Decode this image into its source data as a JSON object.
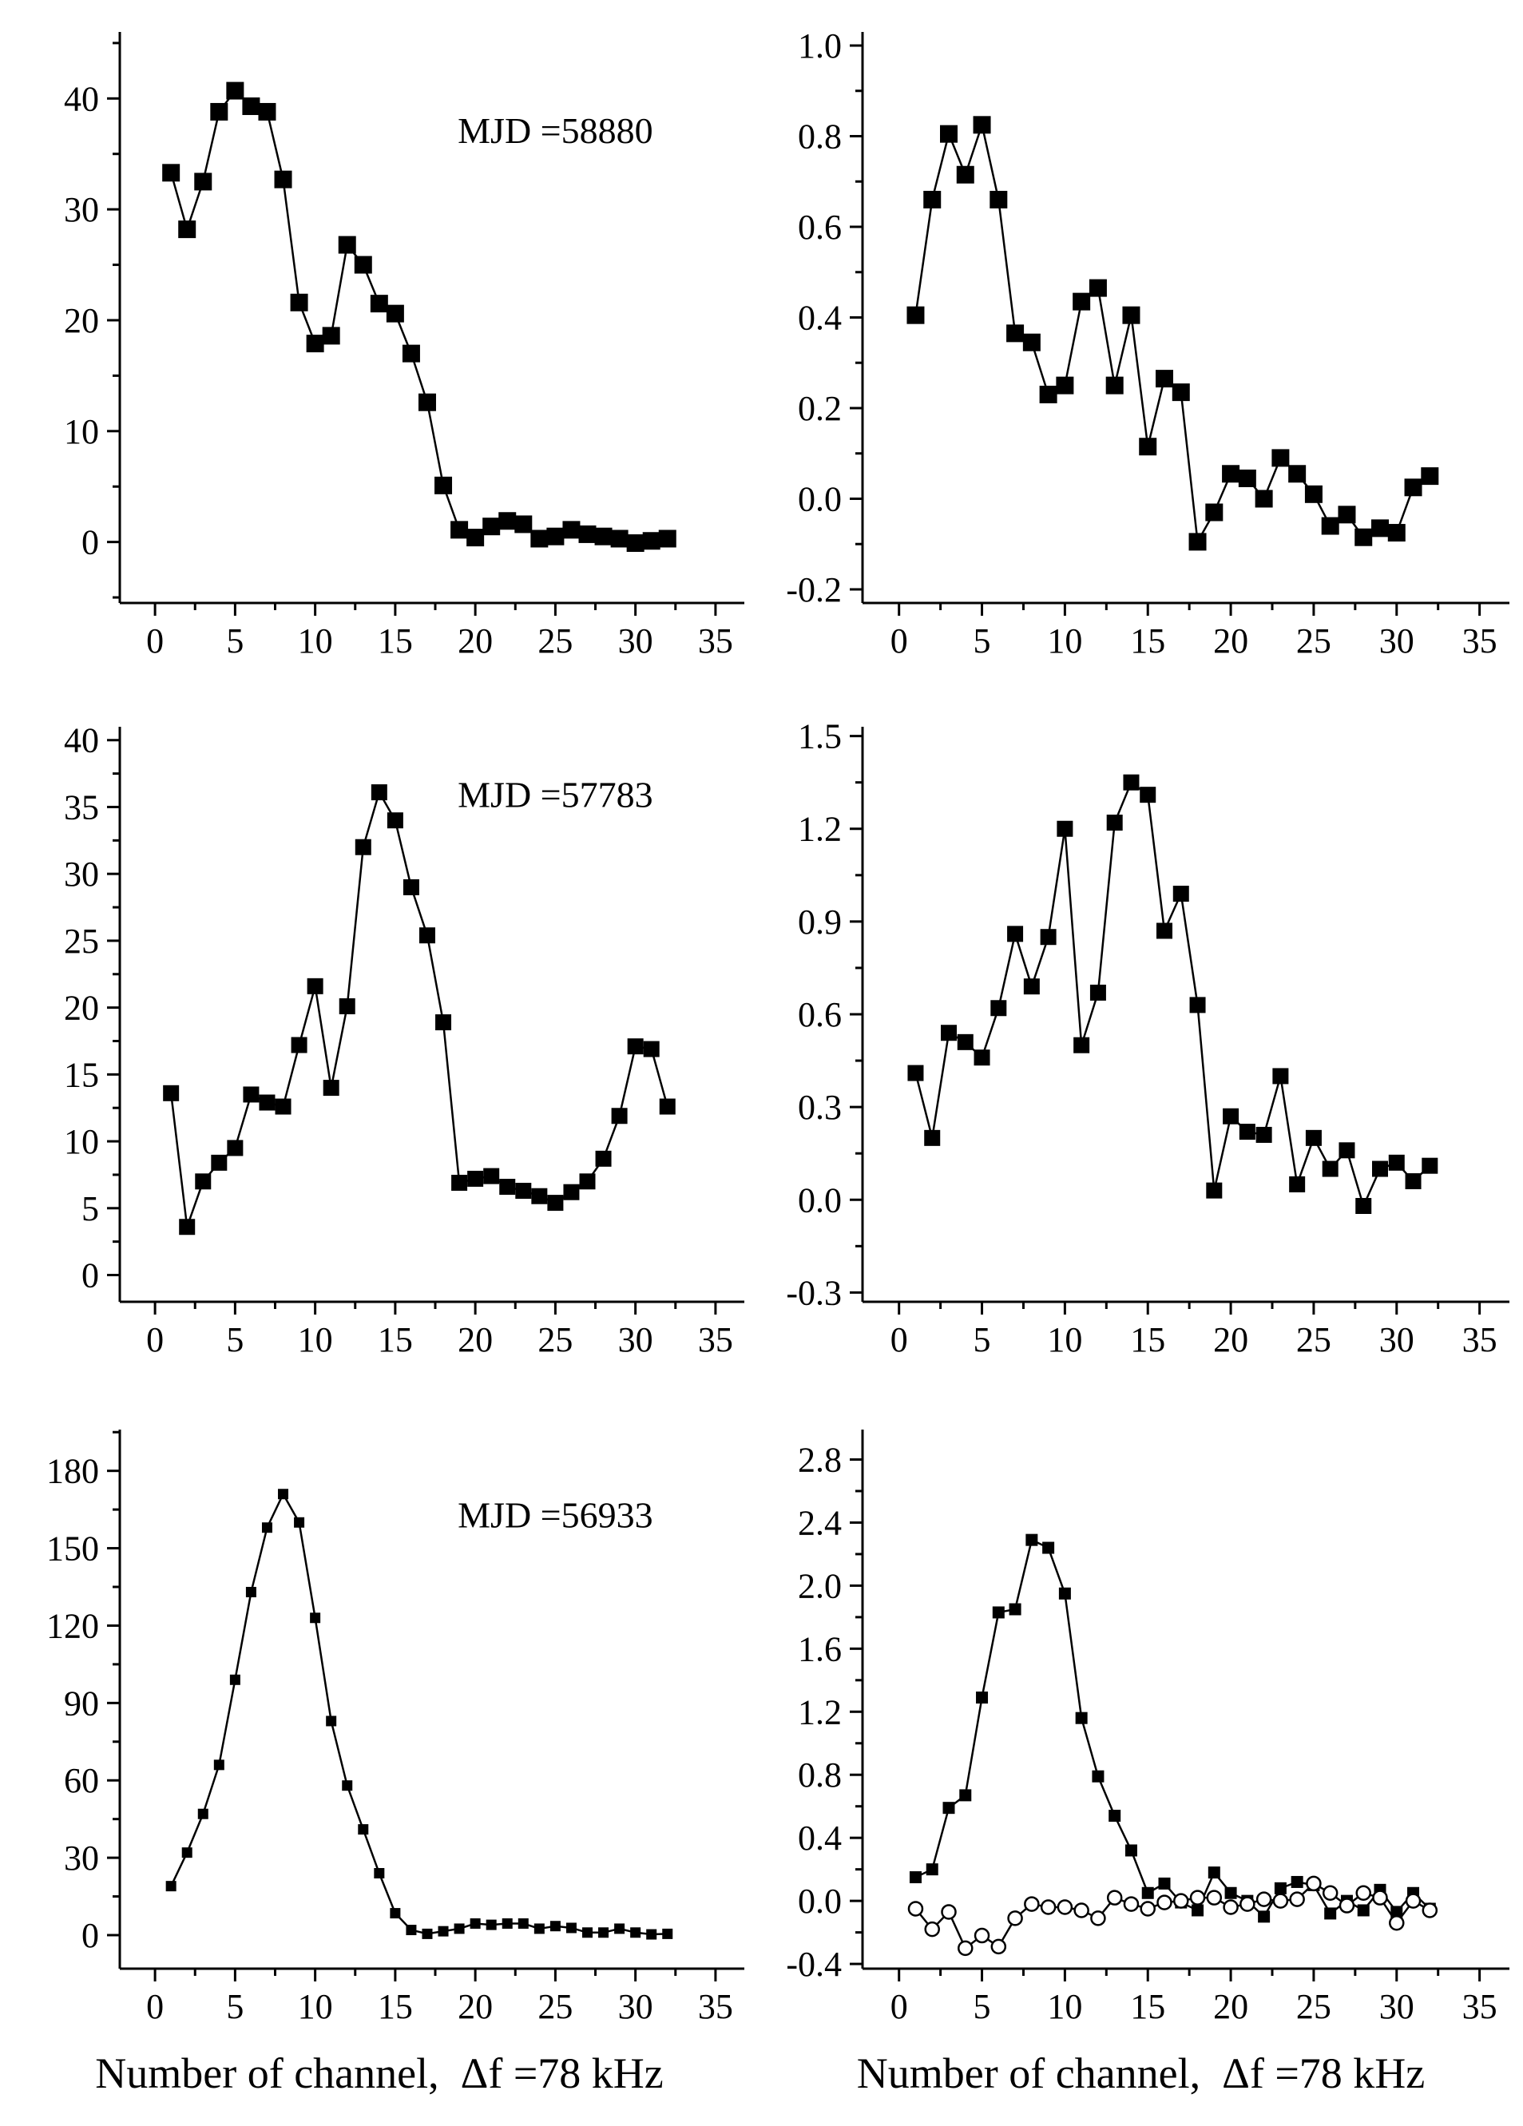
{
  "figure": {
    "background": "#ffffff",
    "ink_color": "#000000",
    "xlabel_left": "Number of channel,  Δf =78 kHz",
    "xlabel_right": "Number of channel,  Δf =78 kHz",
    "channels": [
      1,
      2,
      3,
      4,
      5,
      6,
      7,
      8,
      9,
      10,
      11,
      12,
      13,
      14,
      15,
      16,
      17,
      18,
      19,
      20,
      21,
      22,
      23,
      24,
      25,
      26,
      27,
      28,
      29,
      30,
      31,
      32
    ],
    "xticks": [
      0,
      5,
      10,
      15,
      20,
      25,
      30,
      35
    ],
    "xtick_labels": [
      "0",
      "5",
      "10",
      "15",
      "20",
      "25",
      "30",
      "35"
    ]
  },
  "chart_data": [
    {
      "id": "spectrum-mjd-58880",
      "type": "line",
      "position": "top-left",
      "annotation": "MJD =58880",
      "ylim": [
        -5.5,
        46
      ],
      "yticks": [
        0,
        10,
        20,
        30,
        40
      ],
      "ytick_labels": [
        "0",
        "10",
        "20",
        "30",
        "40"
      ],
      "series": [
        {
          "name": "flux-spectrum",
          "marker": "filled-square",
          "values": [
            33.3,
            28.2,
            32.5,
            38.8,
            40.7,
            39.3,
            38.8,
            32.7,
            21.6,
            17.9,
            18.6,
            26.8,
            25.0,
            21.5,
            20.6,
            17.0,
            12.6,
            5.1,
            1.1,
            0.4,
            1.4,
            1.9,
            1.6,
            0.3,
            0.5,
            1.1,
            0.7,
            0.5,
            0.3,
            -0.1,
            0.1,
            0.3
          ]
        }
      ]
    },
    {
      "id": "spectrum-right-58880",
      "type": "line",
      "position": "top-right",
      "annotation": null,
      "ylim": [
        -0.23,
        1.03
      ],
      "yticks": [
        -0.2,
        0.0,
        0.2,
        0.4,
        0.6,
        0.8,
        1.0
      ],
      "ytick_labels": [
        "-0.2",
        "0.0",
        "0.2",
        "0.4",
        "0.6",
        "0.8",
        "1.0"
      ],
      "series": [
        {
          "name": "flux-spectrum",
          "marker": "filled-square",
          "values": [
            0.405,
            0.66,
            0.805,
            0.715,
            0.825,
            0.66,
            0.365,
            0.345,
            0.23,
            0.25,
            0.435,
            0.465,
            0.25,
            0.405,
            0.115,
            0.265,
            0.235,
            -0.095,
            -0.03,
            0.055,
            0.045,
            0.0,
            0.09,
            0.055,
            0.01,
            -0.06,
            -0.035,
            -0.085,
            -0.065,
            -0.075,
            0.025,
            0.05
          ]
        }
      ]
    },
    {
      "id": "spectrum-mjd-57783",
      "type": "line",
      "position": "middle-left",
      "annotation": "MJD =57783",
      "ylim": [
        -2,
        41
      ],
      "yticks": [
        0,
        5,
        10,
        15,
        20,
        25,
        30,
        35,
        40
      ],
      "ytick_labels": [
        "0",
        "5",
        "10",
        "15",
        "20",
        "25",
        "30",
        "35",
        "40"
      ],
      "series": [
        {
          "name": "flux-spectrum",
          "marker": "filled-square",
          "values": [
            13.6,
            3.6,
            7.0,
            8.4,
            9.5,
            13.5,
            12.9,
            12.6,
            17.2,
            21.6,
            14.0,
            20.1,
            32.0,
            36.1,
            34.0,
            29.0,
            25.4,
            18.9,
            6.9,
            7.2,
            7.4,
            6.6,
            6.3,
            5.9,
            5.4,
            6.2,
            7.0,
            8.7,
            11.9,
            17.1,
            16.9,
            12.6
          ]
        }
      ]
    },
    {
      "id": "spectrum-right-57783",
      "type": "line",
      "position": "middle-right",
      "annotation": null,
      "ylim": [
        -0.33,
        1.53
      ],
      "yticks": [
        -0.3,
        0.0,
        0.3,
        0.6,
        0.9,
        1.2,
        1.5
      ],
      "ytick_labels": [
        "-0.3",
        "0.0",
        "0.3",
        "0.6",
        "0.9",
        "1.2",
        "1.5"
      ],
      "series": [
        {
          "name": "flux-spectrum",
          "marker": "filled-square",
          "values": [
            0.41,
            0.2,
            0.54,
            0.51,
            0.46,
            0.62,
            0.86,
            0.69,
            0.85,
            1.2,
            0.5,
            0.67,
            1.22,
            1.35,
            1.31,
            0.87,
            0.99,
            0.63,
            0.03,
            0.27,
            0.22,
            0.21,
            0.4,
            0.05,
            0.2,
            0.1,
            0.16,
            -0.02,
            0.1,
            0.12,
            0.06,
            0.11
          ]
        }
      ]
    },
    {
      "id": "spectrum-mjd-56933",
      "type": "line",
      "position": "bottom-left",
      "annotation": "MJD =56933",
      "ylim": [
        -13,
        196
      ],
      "yticks": [
        0,
        30,
        60,
        90,
        120,
        150,
        180
      ],
      "ytick_labels": [
        "0",
        "30",
        "60",
        "90",
        "120",
        "150",
        "180"
      ],
      "series": [
        {
          "name": "flux-spectrum",
          "marker": "filled-square",
          "values": [
            19,
            32,
            47,
            66,
            99,
            133,
            158,
            171,
            160,
            123,
            83,
            58,
            41,
            24,
            8.5,
            2,
            0.5,
            1.5,
            2.5,
            4.5,
            4,
            4.5,
            4.5,
            2.5,
            3.5,
            2.8,
            1,
            1,
            2.5,
            1,
            0.3,
            0.5
          ]
        }
      ]
    },
    {
      "id": "spectrum-right-56933",
      "type": "line",
      "position": "bottom-right",
      "annotation": null,
      "ylim": [
        -0.43,
        2.99
      ],
      "yticks": [
        -0.4,
        0.0,
        0.4,
        0.8,
        1.2,
        1.6,
        2.0,
        2.4,
        2.8
      ],
      "ytick_labels": [
        "-0.4",
        "0.0",
        "0.4",
        "0.8",
        "1.2",
        "1.6",
        "2.0",
        "2.4",
        "2.8"
      ],
      "series": [
        {
          "name": "flux-spectrum",
          "marker": "filled-square",
          "values": [
            0.15,
            0.2,
            0.59,
            0.67,
            1.29,
            1.83,
            1.85,
            2.29,
            2.24,
            1.95,
            1.16,
            0.79,
            0.54,
            0.32,
            0.05,
            0.11,
            -0.01,
            -0.06,
            0.18,
            0.05,
            0.0,
            -0.1,
            0.08,
            0.12,
            0.1,
            -0.08,
            0.0,
            -0.06,
            0.07,
            -0.07,
            0.05,
            -0.05
          ]
        },
        {
          "name": "reference-spectrum",
          "marker": "open-circle",
          "values": [
            -0.05,
            -0.18,
            -0.07,
            -0.3,
            -0.22,
            -0.29,
            -0.11,
            -0.02,
            -0.04,
            -0.04,
            -0.06,
            -0.11,
            0.02,
            -0.02,
            -0.05,
            -0.01,
            0.0,
            0.02,
            0.02,
            -0.04,
            -0.02,
            0.01,
            0.0,
            0.01,
            0.11,
            0.05,
            -0.03,
            0.05,
            0.02,
            -0.14,
            0.0,
            -0.06
          ]
        }
      ]
    }
  ]
}
